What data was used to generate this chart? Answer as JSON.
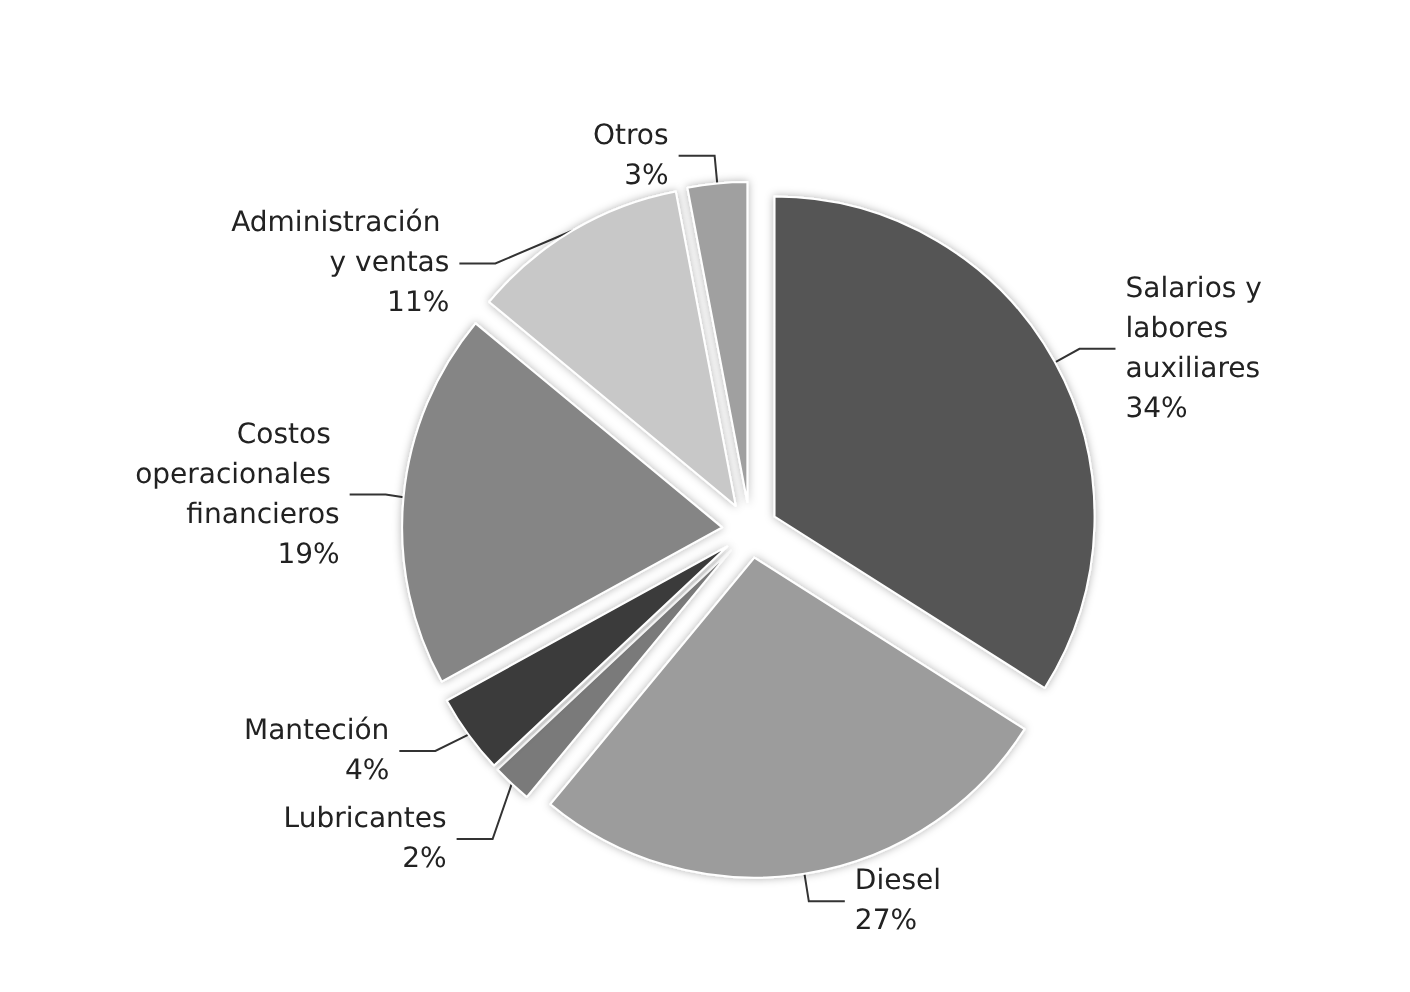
{
  "chart_data": {
    "type": "pie",
    "categories": [
      "Salarios y labores auxiliares",
      "Diesel",
      "Lubricantes",
      "Manteción",
      "Costos operacionales financieros",
      "Administración y ventas",
      "Otros"
    ],
    "values": [
      34,
      27,
      2,
      4,
      19,
      11,
      3
    ],
    "value_labels": [
      "34%",
      "27%",
      "2%",
      "4%",
      "19%",
      "11%",
      "3%"
    ],
    "colors": [
      "#555555",
      "#9c9c9c",
      "#7a7a7a",
      "#3a3a3a",
      "#858585",
      "#c8c8c8",
      "#a0a0a0"
    ],
    "legend": false
  }
}
